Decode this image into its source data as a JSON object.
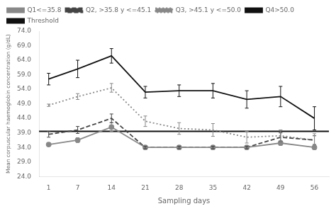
{
  "chart_data": {
    "type": "line",
    "x": [
      1,
      7,
      14,
      21,
      28,
      35,
      42,
      49,
      56
    ],
    "xlabel": "Sampling days",
    "ylabel": "Mean corpuscular haemoglobin concentration (g/dL)",
    "xlim": [
      -1,
      59
    ],
    "xticks": [
      1,
      7,
      14,
      21,
      28,
      35,
      42,
      49,
      56
    ],
    "ylim": [
      24.0,
      74.0
    ],
    "yticks": [
      {
        "value": 24.0,
        "label": "24.0"
      },
      {
        "value": 29.0,
        "label": "29.0"
      },
      {
        "value": 34.0,
        "label": "34.0"
      },
      {
        "value": 39.0,
        "label": "39.0"
      },
      {
        "value": 44.0,
        "label": "44.0"
      },
      {
        "value": 49.0,
        "label": "49.0"
      },
      {
        "value": 54.0,
        "label": "54.0"
      },
      {
        "value": 59.0,
        "label": "59.0"
      },
      {
        "value": 64.0,
        "label": "64.0"
      },
      {
        "value": 69.0,
        "label": "69.0"
      },
      {
        "value": 74.0,
        "label": "74.0"
      }
    ],
    "grid": false,
    "legend": "upper left",
    "series": [
      {
        "name": "Q1<=35.8",
        "color": "#888888",
        "marker": "circle",
        "line_style": "solid",
        "values": [
          35.0,
          36.5,
          41.0,
          34.0,
          34.0,
          34.0,
          34.0,
          35.5,
          34.0
        ],
        "errors": [
          0.5,
          0.8,
          1.5,
          0.4,
          0.4,
          0.4,
          0.4,
          0.8,
          0.4
        ]
      },
      {
        "name": "Q2, >35.8 y <=45.1",
        "color": "#444444",
        "marker": "none",
        "line_style": "dashed",
        "values": [
          38.5,
          40.0,
          44.0,
          34.0,
          34.0,
          34.0,
          34.0,
          37.5,
          36.5
        ],
        "errors": [
          1.0,
          1.2,
          1.5,
          0.4,
          0.4,
          0.4,
          0.4,
          1.5,
          1.5
        ]
      },
      {
        "name": "Q3, >45.1 y <=50.0",
        "color": "#888888",
        "marker": "none",
        "line_style": "dotted",
        "values": [
          48.5,
          51.5,
          54.5,
          43.0,
          40.5,
          40.0,
          37.5,
          38.0,
          36.5
        ],
        "errors": [
          0.4,
          1.0,
          1.5,
          1.8,
          2.0,
          2.2,
          2.0,
          2.0,
          2.2
        ]
      },
      {
        "name": "Q4>50.0",
        "color": "#111111",
        "marker": "none",
        "line_style": "solid",
        "values": [
          57.5,
          61.0,
          65.5,
          53.0,
          53.5,
          53.5,
          50.5,
          51.5,
          44.0
        ],
        "errors": [
          2.0,
          3.0,
          2.5,
          2.0,
          2.0,
          2.5,
          3.0,
          3.5,
          4.0
        ]
      }
    ],
    "hlines": [
      {
        "name": "Threshold",
        "value": 39.5,
        "color": "#111111",
        "line_style": "solid"
      }
    ]
  }
}
